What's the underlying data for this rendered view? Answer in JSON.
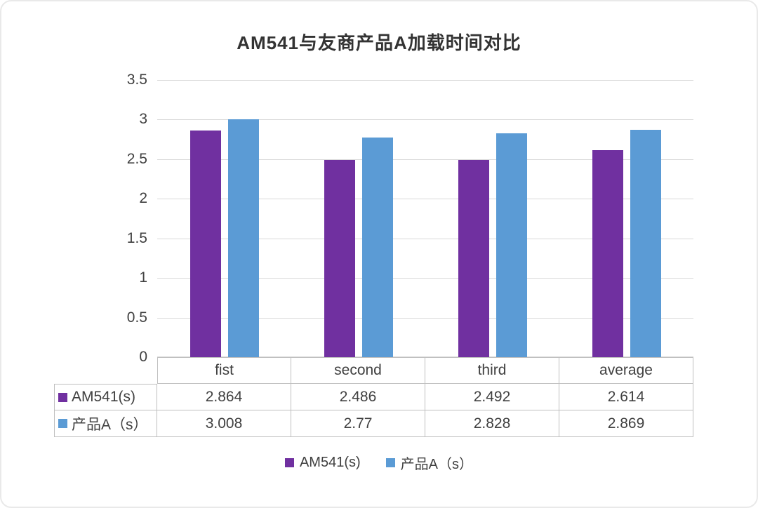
{
  "title": "AM541与友商产品A加载时间对比",
  "colors": {
    "series1": "#7030A0",
    "series2": "#5B9BD5",
    "gridline": "#D9D9D9",
    "table_border": "#BFBFBF",
    "text": "#404040",
    "title_text": "#333333"
  },
  "chart_data": {
    "type": "bar",
    "title": "AM541与友商产品A加载时间对比",
    "categories": [
      "fist",
      "second",
      "third",
      "average"
    ],
    "series": [
      {
        "name": "AM541(s)",
        "color": "#7030A0",
        "values": [
          2.864,
          2.486,
          2.492,
          2.614
        ]
      },
      {
        "name": "产品A（s）",
        "color": "#5B9BD5",
        "values": [
          3.008,
          2.77,
          2.828,
          2.869
        ]
      }
    ],
    "xlabel": "",
    "ylabel": "",
    "ylim": [
      0,
      3.5
    ],
    "ytick_step": 0.5,
    "ytick_labels": [
      "3.5",
      "3",
      "2.5",
      "2",
      "1.5",
      "1",
      "0.5",
      "0"
    ],
    "grid": true,
    "legend_position": "bottom",
    "data_table_shown": true
  }
}
